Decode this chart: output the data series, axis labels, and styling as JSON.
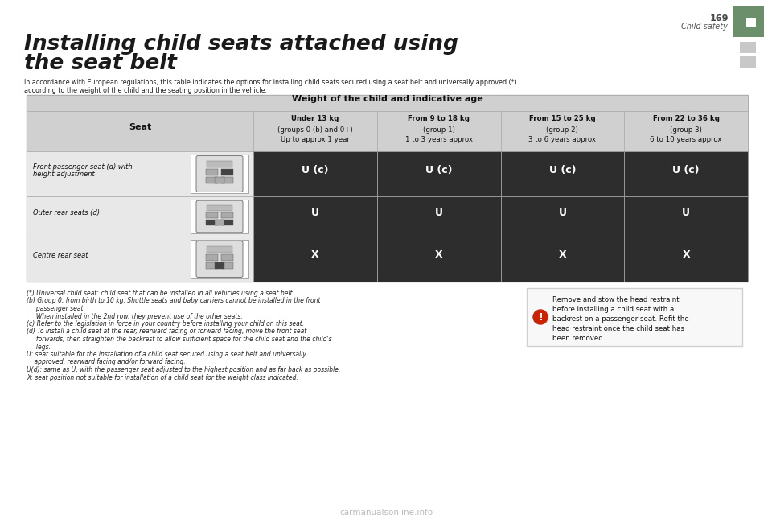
{
  "page_number": "169",
  "section_title": "Child safety",
  "title_line1": "Installing child seats attached using",
  "title_line2": "the seat belt",
  "subtitle": "In accordance with European regulations, this table indicates the options for installing child seats secured using a seat belt and universally approved (*)",
  "subtitle2": "according to the weight of the child and the seating position in the vehicle:",
  "table_header_main": "Weight of the child and indicative age",
  "col_header_0_l1": "Under 13 kg",
  "col_header_0_l2": "(groups 0 (b) and 0+)",
  "col_header_0_l3": "Up to approx 1 year",
  "col_header_1_l1": "From 9 to 18 kg",
  "col_header_1_l2": "(group 1)",
  "col_header_1_l3": "1 to 3 years approx",
  "col_header_2_l1": "From 15 to 25 kg",
  "col_header_2_l2": "(group 2)",
  "col_header_2_l3": "3 to 6 years approx",
  "col_header_3_l1": "From 22 to 36 kg",
  "col_header_3_l2": "(group 3)",
  "col_header_3_l3": "6 to 10 years approx",
  "row0_label_l1": "Front passenger seat (d) with",
  "row0_label_l2": "height adjustment",
  "row1_label": "Outer rear seats (d)",
  "row2_label": "Centre rear seat",
  "cell_r0": [
    "U (c)",
    "U (c)",
    "U (c)",
    "U (c)"
  ],
  "cell_r1": [
    "U",
    "U",
    "U",
    "U"
  ],
  "cell_r2": [
    "X",
    "X",
    "X",
    "X"
  ],
  "fn1": "(*) Universal child seat: child seat that can be installed in all vehicles using a seat belt.",
  "fn2": "(b) Group 0, from birth to 10 kg. Shuttle seats and baby carriers cannot be installed in the front",
  "fn2b": "     passenger seat.",
  "fn2c": "     When installed in the 2nd row, they prevent use of the other seats.",
  "fn3": "(c) Refer to the legislation in force in your country before installing your child on this seat.",
  "fn4": "(d) To install a child seat at the rear, rearward facing or forward facing, move the front seat",
  "fn4b": "     forwards, then straighten the backrest to allow sufficient space for the child seat and the child's",
  "fn4c": "     legs.",
  "fn5": "U: seat suitable for the installation of a child seat secured using a seat belt and universally",
  "fn5b": "    approved, rearward facing and/or forward facing.",
  "fn6": "U(d): same as U, with the passenger seat adjusted to the highest position and as far back as possible.",
  "fn7": "X: seat position not suitable for installation of a child seat for the weight class indicated.",
  "warn_text": "Remove and stow the head restraint\nbefore installing a child seat with a\nbackrest on a passenger seat. Refit the\nhead restraint once the child seat has\nbeen removed.",
  "watermark": "carmanualsonline.info",
  "bg_color": "#ffffff",
  "table_dark": "#2d2d2d",
  "table_light_row": "#f2f2f2",
  "table_header_bg": "#d0d0d0",
  "table_seat_bg": "#e8e8e8",
  "green_color": "#6a8f6a",
  "grey_square": "#c8c8c8",
  "title_color": "#1a1a1a",
  "warn_border": "#d0d0d0",
  "warn_bg": "#f8f8f8",
  "warn_icon_color": "#cc2200"
}
